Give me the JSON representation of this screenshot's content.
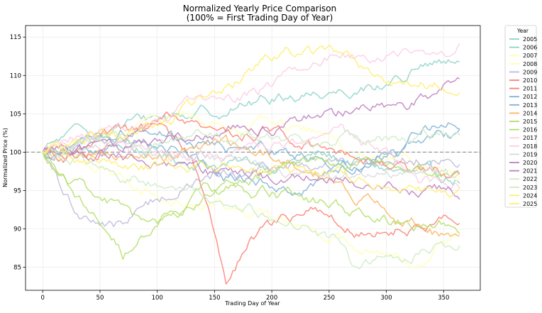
{
  "chart_data": {
    "type": "line",
    "title_line1": "Normalized Yearly Price Comparison",
    "title_line2": "(100% = First Trading Day of Year)",
    "xlabel": "Trading Day of Year",
    "ylabel": "Normalized Price (%)",
    "xlim": [
      -15,
      382
    ],
    "ylim": [
      82,
      116.5
    ],
    "xticks": [
      0,
      50,
      100,
      150,
      200,
      250,
      300,
      350
    ],
    "yticks": [
      85,
      90,
      95,
      100,
      105,
      110,
      115
    ],
    "grid": true,
    "reference_line": {
      "y": 100,
      "style": "dashed",
      "color": "#999999"
    },
    "legend": {
      "title": "Year",
      "placement": "outside-right"
    },
    "series": [
      {
        "name": "2005",
        "color": "#8dd3c7",
        "values": [
          [
            0,
            100
          ],
          [
            40,
            101.5
          ],
          [
            80,
            100.5
          ],
          [
            120,
            99
          ],
          [
            160,
            98.5
          ],
          [
            200,
            98.5
          ],
          [
            240,
            99.5
          ],
          [
            280,
            98.5
          ],
          [
            320,
            97
          ],
          [
            350,
            96.5
          ],
          [
            365,
            96.5
          ]
        ]
      },
      {
        "name": "2006",
        "color": "#8dd3c7",
        "values": [
          [
            0,
            100
          ],
          [
            20,
            102
          ],
          [
            60,
            103
          ],
          [
            100,
            104.5
          ],
          [
            150,
            105.5
          ],
          [
            200,
            107
          ],
          [
            250,
            108
          ],
          [
            300,
            109
          ],
          [
            340,
            111.5
          ],
          [
            365,
            111
          ]
        ]
      },
      {
        "name": "2007",
        "color": "#ffffb3",
        "values": [
          [
            0,
            100
          ],
          [
            30,
            101
          ],
          [
            70,
            102.5
          ],
          [
            110,
            104.5
          ],
          [
            150,
            104
          ],
          [
            200,
            104
          ],
          [
            250,
            102
          ],
          [
            300,
            99
          ],
          [
            340,
            98
          ],
          [
            365,
            97
          ]
        ]
      },
      {
        "name": "2008",
        "color": "#ffffb3",
        "values": [
          [
            0,
            100
          ],
          [
            40,
            99
          ],
          [
            80,
            96
          ],
          [
            120,
            93.5
          ],
          [
            160,
            93
          ],
          [
            200,
            91
          ],
          [
            240,
            90
          ],
          [
            280,
            88
          ],
          [
            320,
            86
          ],
          [
            345,
            88
          ],
          [
            365,
            89.5
          ]
        ]
      },
      {
        "name": "2009",
        "color": "#bebada",
        "values": [
          [
            0,
            100
          ],
          [
            15,
            95
          ],
          [
            30,
            92
          ],
          [
            50,
            91
          ],
          [
            70,
            90.5
          ],
          [
            100,
            94
          ],
          [
            140,
            96.5
          ],
          [
            180,
            97.5
          ],
          [
            220,
            98
          ],
          [
            260,
            98.5
          ],
          [
            300,
            99
          ],
          [
            340,
            99.5
          ],
          [
            365,
            99
          ]
        ]
      },
      {
        "name": "2010",
        "color": "#fb8072",
        "values": [
          [
            0,
            100
          ],
          [
            30,
            98.5
          ],
          [
            70,
            101
          ],
          [
            110,
            104
          ],
          [
            150,
            102
          ],
          [
            200,
            103
          ],
          [
            240,
            101
          ],
          [
            280,
            100
          ],
          [
            320,
            97.5
          ],
          [
            365,
            97.5
          ]
        ]
      },
      {
        "name": "2011",
        "color": "#fb8072",
        "values": [
          [
            0,
            100
          ],
          [
            50,
            101
          ],
          [
            100,
            103
          ],
          [
            130,
            100
          ],
          [
            150,
            89.5
          ],
          [
            160,
            83.5
          ],
          [
            180,
            88
          ],
          [
            210,
            91
          ],
          [
            240,
            92
          ],
          [
            280,
            90
          ],
          [
            320,
            90.5
          ],
          [
            350,
            91.5
          ],
          [
            365,
            91.5
          ]
        ]
      },
      {
        "name": "2012",
        "color": "#80b1d3",
        "values": [
          [
            0,
            100
          ],
          [
            40,
            102
          ],
          [
            80,
            103
          ],
          [
            120,
            102
          ],
          [
            160,
            100.5
          ],
          [
            200,
            100
          ],
          [
            240,
            99.5
          ],
          [
            280,
            99
          ],
          [
            320,
            100.5
          ],
          [
            350,
            101.5
          ],
          [
            365,
            102
          ]
        ]
      },
      {
        "name": "2013",
        "color": "#80b1d3",
        "values": [
          [
            0,
            100
          ],
          [
            40,
            101
          ],
          [
            80,
            101
          ],
          [
            120,
            100
          ],
          [
            160,
            97
          ],
          [
            200,
            95.5
          ],
          [
            240,
            96
          ],
          [
            270,
            98
          ],
          [
            300,
            100.5
          ],
          [
            340,
            103.5
          ],
          [
            365,
            104
          ]
        ]
      },
      {
        "name": "2014",
        "color": "#fdb462",
        "values": [
          [
            0,
            100
          ],
          [
            40,
            99.5
          ],
          [
            80,
            99
          ],
          [
            120,
            100
          ],
          [
            160,
            100.5
          ],
          [
            200,
            99
          ],
          [
            240,
            97
          ],
          [
            280,
            94
          ],
          [
            320,
            91
          ],
          [
            350,
            89
          ],
          [
            365,
            88
          ]
        ]
      },
      {
        "name": "2015",
        "color": "#b3de69",
        "values": [
          [
            0,
            100
          ],
          [
            20,
            97
          ],
          [
            40,
            94.5
          ],
          [
            60,
            93.5
          ],
          [
            80,
            91
          ],
          [
            100,
            90
          ],
          [
            130,
            93
          ],
          [
            160,
            95
          ],
          [
            200,
            94.5
          ],
          [
            250,
            93
          ],
          [
            300,
            91
          ],
          [
            340,
            90.5
          ],
          [
            365,
            90.5
          ]
        ]
      },
      {
        "name": "2016",
        "color": "#b3de69",
        "values": [
          [
            0,
            100
          ],
          [
            20,
            96.5
          ],
          [
            40,
            93
          ],
          [
            60,
            90
          ],
          [
            70,
            87
          ],
          [
            90,
            89
          ],
          [
            110,
            92
          ],
          [
            140,
            94.5
          ],
          [
            180,
            96.5
          ],
          [
            220,
            98
          ],
          [
            260,
            99
          ],
          [
            300,
            99
          ],
          [
            340,
            97
          ],
          [
            365,
            96.5
          ]
        ]
      },
      {
        "name": "2017",
        "color": "#fccde5",
        "values": [
          [
            0,
            100
          ],
          [
            30,
            101
          ],
          [
            70,
            103
          ],
          [
            110,
            105
          ],
          [
            150,
            106.5
          ],
          [
            200,
            108.5
          ],
          [
            240,
            112
          ],
          [
            260,
            113.5
          ],
          [
            290,
            112
          ],
          [
            320,
            112.5
          ],
          [
            345,
            113
          ],
          [
            365,
            114
          ]
        ]
      },
      {
        "name": "2018",
        "color": "#fccde5",
        "values": [
          [
            0,
            100
          ],
          [
            30,
            102
          ],
          [
            60,
            101
          ],
          [
            100,
            100
          ],
          [
            140,
            99.5
          ],
          [
            180,
            101
          ],
          [
            220,
            101
          ],
          [
            260,
            102.5
          ],
          [
            300,
            99
          ],
          [
            330,
            96
          ],
          [
            365,
            95
          ]
        ]
      },
      {
        "name": "2019",
        "color": "#d9d9d9",
        "values": [
          [
            0,
            100
          ],
          [
            40,
            100.5
          ],
          [
            80,
            100
          ],
          [
            120,
            99.5
          ],
          [
            160,
            99
          ],
          [
            200,
            98
          ],
          [
            240,
            96.5
          ],
          [
            280,
            97
          ],
          [
            320,
            97.5
          ],
          [
            350,
            97
          ],
          [
            365,
            96.5
          ]
        ]
      },
      {
        "name": "2020",
        "color": "#bc80bd",
        "values": [
          [
            0,
            100
          ],
          [
            40,
            100
          ],
          [
            80,
            99
          ],
          [
            120,
            98
          ],
          [
            160,
            97
          ],
          [
            200,
            96
          ],
          [
            240,
            96.5
          ],
          [
            280,
            96
          ],
          [
            320,
            95.5
          ],
          [
            350,
            95
          ],
          [
            365,
            95
          ]
        ]
      },
      {
        "name": "2021",
        "color": "#bc80bd",
        "values": [
          [
            0,
            100
          ],
          [
            40,
            100.5
          ],
          [
            80,
            101
          ],
          [
            120,
            102
          ],
          [
            160,
            103
          ],
          [
            200,
            103.5
          ],
          [
            240,
            104.5
          ],
          [
            280,
            105.5
          ],
          [
            320,
            106
          ],
          [
            350,
            108.5
          ],
          [
            365,
            109
          ]
        ]
      },
      {
        "name": "2022",
        "color": "#ccebc5",
        "values": [
          [
            0,
            100
          ],
          [
            40,
            99
          ],
          [
            80,
            97
          ],
          [
            120,
            95
          ],
          [
            160,
            93
          ],
          [
            200,
            91
          ],
          [
            230,
            90.5
          ],
          [
            260,
            88.5
          ],
          [
            270,
            85
          ],
          [
            290,
            86
          ],
          [
            320,
            87
          ],
          [
            350,
            88
          ],
          [
            365,
            88.5
          ]
        ]
      },
      {
        "name": "2023",
        "color": "#ccebc5",
        "values": [
          [
            0,
            100
          ],
          [
            40,
            101
          ],
          [
            80,
            101.5
          ],
          [
            120,
            102
          ],
          [
            160,
            102
          ],
          [
            200,
            101.5
          ],
          [
            240,
            101.5
          ],
          [
            280,
            102
          ],
          [
            320,
            102
          ],
          [
            350,
            102
          ],
          [
            365,
            102
          ]
        ]
      },
      {
        "name": "2024",
        "color": "#ffed6f",
        "values": [
          [
            0,
            100
          ],
          [
            40,
            102
          ],
          [
            80,
            103
          ],
          [
            120,
            105
          ],
          [
            160,
            108.5
          ],
          [
            190,
            112
          ],
          [
            210,
            113
          ],
          [
            240,
            113
          ],
          [
            260,
            112.5
          ],
          [
            280,
            111
          ],
          [
            300,
            109
          ],
          [
            320,
            108
          ],
          [
            350,
            109
          ],
          [
            365,
            109
          ]
        ]
      },
      {
        "name": "2025",
        "color": "#ffed6f",
        "values": [
          [
            0,
            100
          ],
          [
            30,
            99
          ],
          [
            60,
            98.5
          ],
          [
            90,
            98
          ],
          [
            120,
            98.5
          ],
          [
            160,
            98
          ],
          [
            200,
            98
          ],
          [
            240,
            97
          ],
          [
            280,
            96
          ],
          [
            320,
            95
          ],
          [
            350,
            94.5
          ],
          [
            365,
            94.5
          ]
        ]
      }
    ]
  }
}
